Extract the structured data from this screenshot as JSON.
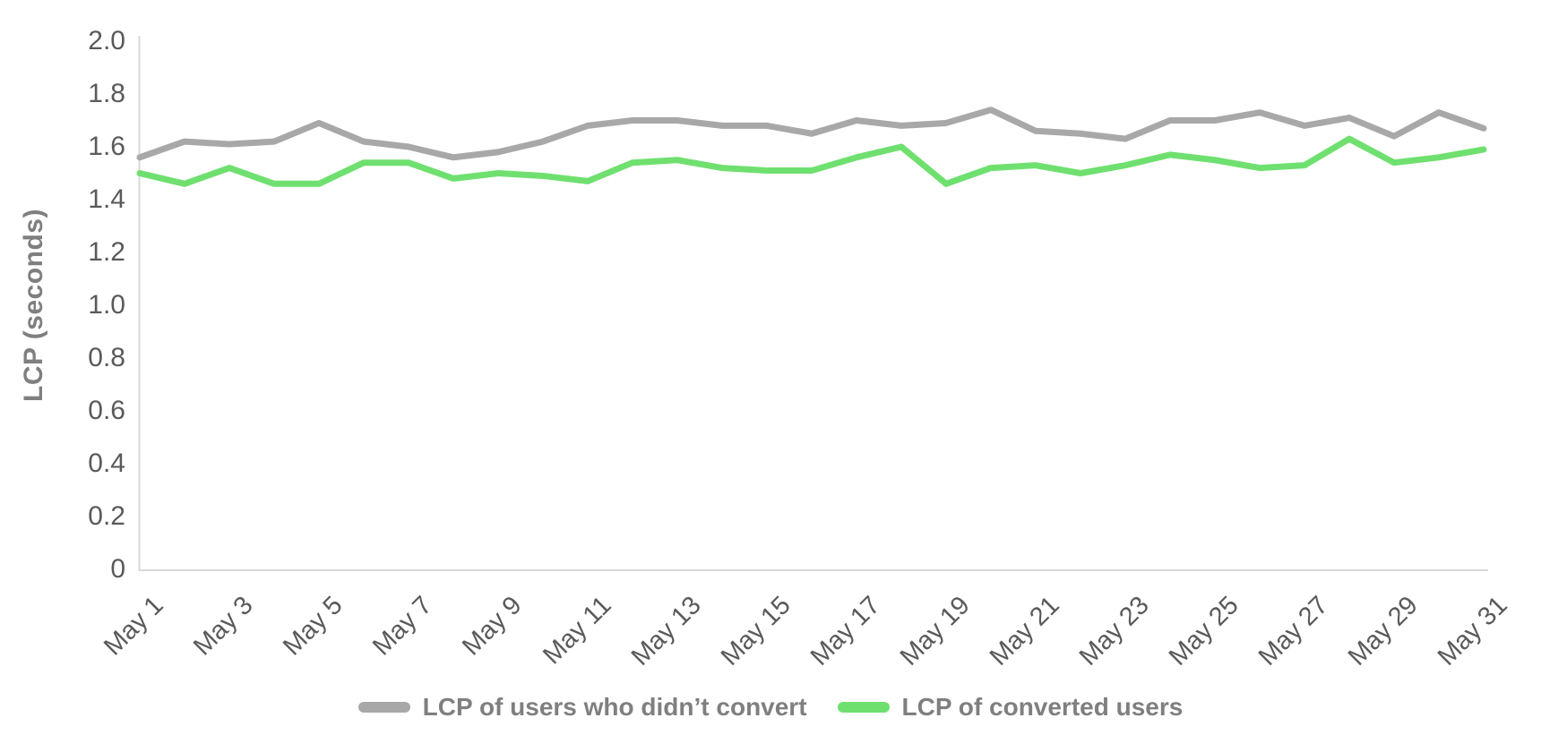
{
  "chart_data": {
    "type": "line",
    "title": "",
    "xlabel": "",
    "ylabel": "LCP (seconds)",
    "ylim": [
      0,
      2.0
    ],
    "ytick_step": 0.2,
    "ytick_labels": [
      "2.0",
      "1.8",
      "1.6",
      "1.4",
      "1.2",
      "1.0",
      "0.8",
      "0.6",
      "0.4",
      "0.2",
      "0"
    ],
    "grid": false,
    "legend_position": "bottom",
    "x_labels_shown_every": 2,
    "x": [
      "May 1",
      "May 2",
      "May 3",
      "May 4",
      "May 5",
      "May 6",
      "May 7",
      "May 8",
      "May 9",
      "May 10",
      "May 11",
      "May 12",
      "May 13",
      "May 14",
      "May 15",
      "May 16",
      "May 17",
      "May 18",
      "May 19",
      "May 20",
      "May 21",
      "May 22",
      "May 23",
      "May 24",
      "May 25",
      "May 26",
      "May 27",
      "May 28",
      "May 29",
      "May 30",
      "May 31"
    ],
    "series": [
      {
        "name": "LCP of users who didn’t convert",
        "color": "#a8a8a8",
        "values": [
          1.56,
          1.62,
          1.61,
          1.62,
          1.69,
          1.62,
          1.6,
          1.56,
          1.58,
          1.62,
          1.68,
          1.7,
          1.7,
          1.68,
          1.68,
          1.65,
          1.7,
          1.68,
          1.69,
          1.74,
          1.66,
          1.65,
          1.63,
          1.7,
          1.7,
          1.73,
          1.68,
          1.71,
          1.64,
          1.73,
          1.67
        ]
      },
      {
        "name": "LCP of converted users",
        "color": "#6fe06f",
        "values": [
          1.5,
          1.46,
          1.52,
          1.46,
          1.46,
          1.54,
          1.54,
          1.48,
          1.5,
          1.49,
          1.47,
          1.54,
          1.55,
          1.52,
          1.51,
          1.51,
          1.56,
          1.6,
          1.46,
          1.52,
          1.53,
          1.5,
          1.53,
          1.57,
          1.55,
          1.52,
          1.53,
          1.63,
          1.54,
          1.56,
          1.59
        ]
      }
    ]
  },
  "axis_style": {
    "axis_line_color": "#d9d9d9",
    "tick_label_color": "#5a5a5a",
    "axis_title_color": "#7f7f7f"
  },
  "legend": {
    "items": [
      {
        "label": "LCP of users who didn’t convert",
        "color": "#a8a8a8"
      },
      {
        "label": "LCP of converted users",
        "color": "#6fe06f"
      }
    ]
  }
}
